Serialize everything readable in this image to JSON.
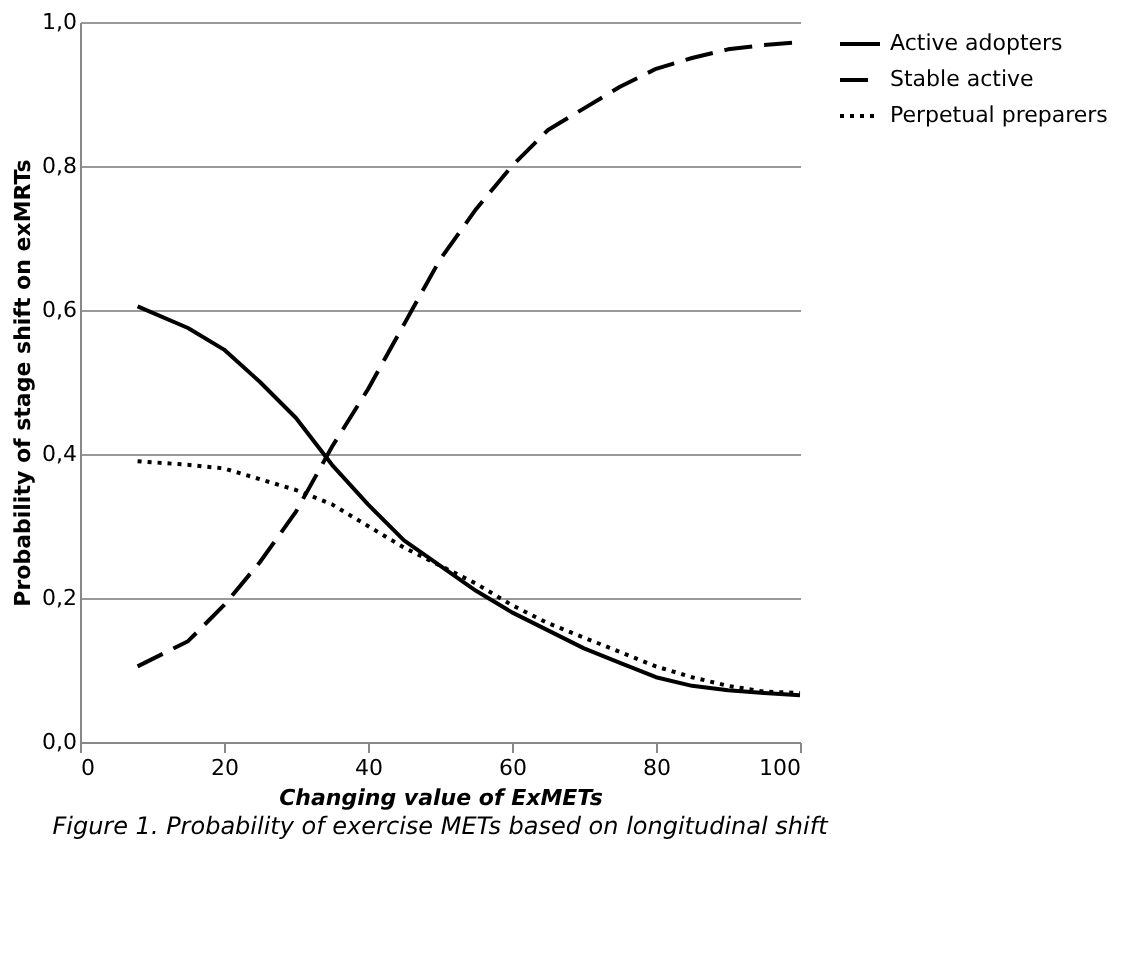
{
  "chart_data": {
    "type": "line",
    "xlabel": "Changing value  of ExMETs",
    "ylabel": "Probability of stage shift on exMRTs",
    "x": [
      8,
      15,
      20,
      25,
      30,
      35,
      40,
      45,
      50,
      55,
      60,
      65,
      70,
      75,
      80,
      85,
      90,
      95,
      100
    ],
    "series": [
      {
        "name": "Active adopters",
        "color": "#000000",
        "line_style": "solid",
        "values": [
          0.605,
          0.575,
          0.545,
          0.5,
          0.45,
          0.385,
          0.33,
          0.28,
          0.245,
          0.21,
          0.18,
          0.155,
          0.13,
          0.11,
          0.09,
          0.078,
          0.072,
          0.068,
          0.065
        ]
      },
      {
        "name": "Stable active",
        "color": "#000000",
        "line_style": "dashed",
        "values": [
          0.105,
          0.14,
          0.19,
          0.25,
          0.32,
          0.41,
          0.49,
          0.58,
          0.67,
          0.74,
          0.8,
          0.85,
          0.88,
          0.91,
          0.935,
          0.95,
          0.962,
          0.968,
          0.972
        ]
      },
      {
        "name": "Perpetual preparers",
        "color": "#000000",
        "line_style": "dotted",
        "values": [
          0.39,
          0.385,
          0.38,
          0.365,
          0.35,
          0.33,
          0.3,
          0.27,
          0.245,
          0.22,
          0.19,
          0.165,
          0.145,
          0.125,
          0.105,
          0.09,
          0.078,
          0.07,
          0.068
        ]
      }
    ],
    "xlim": [
      0,
      100
    ],
    "xticks": [
      0,
      20,
      40,
      60,
      80,
      100
    ],
    "ylim": [
      0,
      1
    ],
    "yticks": [
      {
        "value": 0,
        "label": "0,0"
      },
      {
        "value": 0.2,
        "label": "0,2"
      },
      {
        "value": 0.4,
        "label": "0,4"
      },
      {
        "value": 0.6,
        "label": "0,6"
      },
      {
        "value": 0.8,
        "label": "0,8"
      },
      {
        "value": 1,
        "label": "1,0"
      }
    ],
    "grid": "y",
    "legend": "right",
    "marker": "none",
    "annotations": [
      "Figure 1. Probability of exercise METs based on longitudinal shift"
    ]
  }
}
